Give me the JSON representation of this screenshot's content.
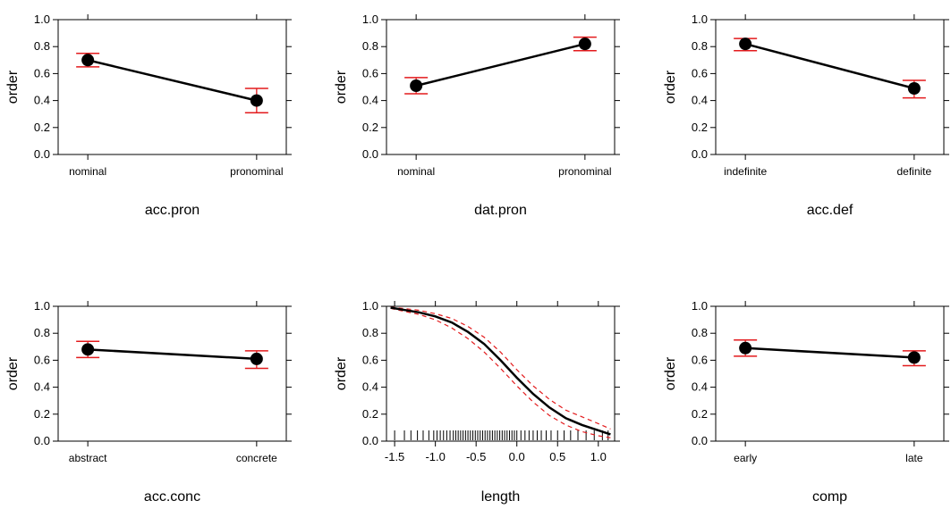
{
  "chart_data": [
    {
      "type": "line",
      "xlabel": "acc.pron",
      "ylabel": "order",
      "ylim": [
        0,
        1
      ],
      "yticks": [
        "0.0",
        "0.2",
        "0.4",
        "0.6",
        "0.8",
        "1.0"
      ],
      "categories": [
        "nominal",
        "pronominal"
      ],
      "values": [
        0.7,
        0.4
      ],
      "lower": [
        0.65,
        0.31
      ],
      "upper": [
        0.75,
        0.49
      ],
      "colors": {
        "line": "#000000",
        "ci": "#e31a1c"
      }
    },
    {
      "type": "line",
      "xlabel": "dat.pron",
      "ylabel": "order",
      "ylim": [
        0,
        1
      ],
      "yticks": [
        "0.0",
        "0.2",
        "0.4",
        "0.6",
        "0.8",
        "1.0"
      ],
      "categories": [
        "nominal",
        "pronominal"
      ],
      "values": [
        0.51,
        0.82
      ],
      "lower": [
        0.45,
        0.77
      ],
      "upper": [
        0.57,
        0.87
      ],
      "colors": {
        "line": "#000000",
        "ci": "#e31a1c"
      }
    },
    {
      "type": "line",
      "xlabel": "acc.def",
      "ylabel": "order",
      "ylim": [
        0,
        1
      ],
      "yticks": [
        "0.0",
        "0.2",
        "0.4",
        "0.6",
        "0.8",
        "1.0"
      ],
      "categories": [
        "indefinite",
        "definite"
      ],
      "values": [
        0.82,
        0.49
      ],
      "lower": [
        0.77,
        0.42
      ],
      "upper": [
        0.86,
        0.55
      ],
      "colors": {
        "line": "#000000",
        "ci": "#e31a1c"
      }
    },
    {
      "type": "line",
      "xlabel": "acc.conc",
      "ylabel": "order",
      "ylim": [
        0,
        1
      ],
      "yticks": [
        "0.0",
        "0.2",
        "0.4",
        "0.6",
        "0.8",
        "1.0"
      ],
      "categories": [
        "abstract",
        "concrete"
      ],
      "values": [
        0.68,
        0.61
      ],
      "lower": [
        0.62,
        0.54
      ],
      "upper": [
        0.74,
        0.67
      ],
      "colors": {
        "line": "#000000",
        "ci": "#e31a1c"
      }
    },
    {
      "type": "line",
      "continuous": true,
      "xlabel": "length",
      "ylabel": "order",
      "ylim": [
        0,
        1
      ],
      "xlim": [
        -1.6,
        1.2
      ],
      "yticks": [
        "0.0",
        "0.2",
        "0.4",
        "0.6",
        "0.8",
        "1.0"
      ],
      "xticks": [
        "-1.5",
        "-1.0",
        "-0.5",
        "0.0",
        "0.5",
        "1.0"
      ],
      "x": [
        -1.55,
        -1.4,
        -1.2,
        -1.0,
        -0.8,
        -0.6,
        -0.4,
        -0.2,
        0.0,
        0.2,
        0.4,
        0.6,
        0.8,
        1.0,
        1.15
      ],
      "values": [
        0.99,
        0.975,
        0.955,
        0.925,
        0.88,
        0.81,
        0.72,
        0.6,
        0.47,
        0.35,
        0.25,
        0.17,
        0.12,
        0.08,
        0.05
      ],
      "lower": [
        0.985,
        0.965,
        0.94,
        0.9,
        0.84,
        0.76,
        0.66,
        0.54,
        0.41,
        0.29,
        0.19,
        0.12,
        0.07,
        0.04,
        0.025
      ],
      "upper": [
        0.995,
        0.985,
        0.97,
        0.945,
        0.91,
        0.85,
        0.77,
        0.66,
        0.53,
        0.41,
        0.31,
        0.23,
        0.18,
        0.13,
        0.09
      ],
      "rug": [
        -1.5,
        -1.38,
        -1.3,
        -1.22,
        -1.15,
        -1.08,
        -1.02,
        -0.98,
        -0.94,
        -0.9,
        -0.86,
        -0.82,
        -0.78,
        -0.75,
        -0.72,
        -0.69,
        -0.66,
        -0.63,
        -0.6,
        -0.57,
        -0.54,
        -0.51,
        -0.48,
        -0.45,
        -0.42,
        -0.39,
        -0.36,
        -0.33,
        -0.3,
        -0.27,
        -0.24,
        -0.21,
        -0.18,
        -0.15,
        -0.12,
        -0.09,
        -0.06,
        -0.03,
        0.0,
        0.05,
        0.1,
        0.15,
        0.2,
        0.25,
        0.3,
        0.36,
        0.42,
        0.5,
        0.58,
        0.66,
        0.75,
        0.85,
        0.95,
        1.05,
        1.12
      ],
      "colors": {
        "line": "#000000",
        "ci": "#e31a1c"
      }
    },
    {
      "type": "line",
      "xlabel": "comp",
      "ylabel": "order",
      "ylim": [
        0,
        1
      ],
      "yticks": [
        "0.0",
        "0.2",
        "0.4",
        "0.6",
        "0.8",
        "1.0"
      ],
      "categories": [
        "early",
        "late"
      ],
      "values": [
        0.69,
        0.62
      ],
      "lower": [
        0.63,
        0.56
      ],
      "upper": [
        0.75,
        0.67
      ],
      "colors": {
        "line": "#000000",
        "ci": "#e31a1c"
      }
    }
  ]
}
